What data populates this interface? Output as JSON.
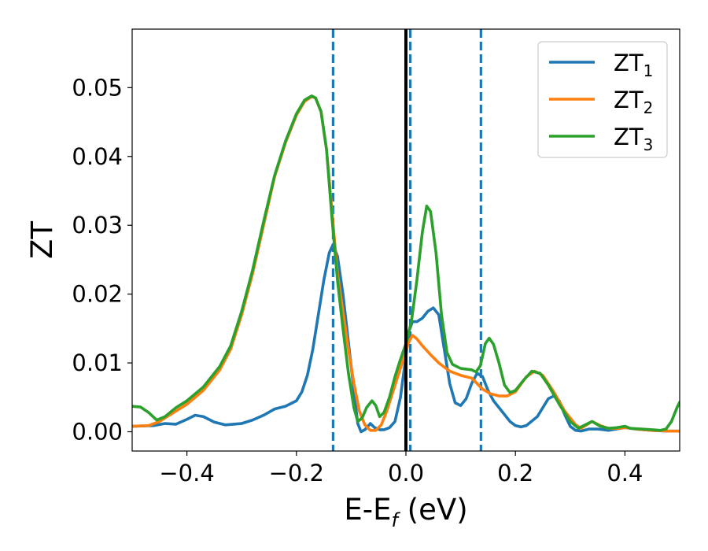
{
  "chart_data": {
    "type": "line",
    "xlabel_main": "E-E",
    "xlabel_sub": "f",
    "xlabel_unit": " (eV)",
    "ylabel": "ZT",
    "xlim": [
      -0.5,
      0.5
    ],
    "ylim": [
      -0.0028,
      0.0585
    ],
    "x_ticks": [
      -0.4,
      -0.2,
      0.0,
      0.2,
      0.4
    ],
    "x_tick_labels": [
      "−0.4",
      "−0.2",
      "0.0",
      "0.2",
      "0.4"
    ],
    "y_ticks": [
      0.0,
      0.01,
      0.02,
      0.03,
      0.04,
      0.05
    ],
    "y_tick_labels": [
      "0.00",
      "0.01",
      "0.02",
      "0.03",
      "0.04",
      "0.05"
    ],
    "grid": false,
    "legend_position": "top-right",
    "vlines": [
      {
        "x": -0.133,
        "style": "dashed",
        "color": "#1f77b4"
      },
      {
        "x": 0.0,
        "style": "solid",
        "color": "#000000"
      },
      {
        "x": 0.008,
        "style": "dashed",
        "color": "#1f77b4"
      },
      {
        "x": 0.137,
        "style": "dashed",
        "color": "#1f77b4"
      }
    ],
    "series": [
      {
        "label_base": "ZT",
        "label_sub": "1",
        "color": "#1f77b4",
        "points": [
          [
            -0.5,
            0.0008
          ],
          [
            -0.46,
            0.0009
          ],
          [
            -0.44,
            0.0012
          ],
          [
            -0.42,
            0.0011
          ],
          [
            -0.4,
            0.0018
          ],
          [
            -0.385,
            0.0024
          ],
          [
            -0.37,
            0.0022
          ],
          [
            -0.35,
            0.0014
          ],
          [
            -0.33,
            0.001
          ],
          [
            -0.3,
            0.0012
          ],
          [
            -0.28,
            0.0017
          ],
          [
            -0.26,
            0.0024
          ],
          [
            -0.24,
            0.0033
          ],
          [
            -0.22,
            0.0037
          ],
          [
            -0.2,
            0.0045
          ],
          [
            -0.19,
            0.0058
          ],
          [
            -0.18,
            0.0082
          ],
          [
            -0.17,
            0.012
          ],
          [
            -0.16,
            0.017
          ],
          [
            -0.15,
            0.022
          ],
          [
            -0.14,
            0.026
          ],
          [
            -0.133,
            0.0272
          ],
          [
            -0.125,
            0.0255
          ],
          [
            -0.115,
            0.02
          ],
          [
            -0.105,
            0.013
          ],
          [
            -0.095,
            0.006
          ],
          [
            -0.088,
            0.0012
          ],
          [
            -0.082,
            0.0
          ],
          [
            -0.075,
            0.0003
          ],
          [
            -0.065,
            0.0012
          ],
          [
            -0.057,
            0.0006
          ],
          [
            -0.048,
            0.0003
          ],
          [
            -0.04,
            0.0003
          ],
          [
            -0.03,
            0.0006
          ],
          [
            -0.02,
            0.0015
          ],
          [
            -0.01,
            0.005
          ],
          [
            0.0,
            0.011
          ],
          [
            0.005,
            0.0145
          ],
          [
            0.012,
            0.016
          ],
          [
            0.02,
            0.016
          ],
          [
            0.03,
            0.0165
          ],
          [
            0.04,
            0.0175
          ],
          [
            0.05,
            0.018
          ],
          [
            0.06,
            0.017
          ],
          [
            0.07,
            0.012
          ],
          [
            0.08,
            0.007
          ],
          [
            0.09,
            0.0042
          ],
          [
            0.1,
            0.0038
          ],
          [
            0.11,
            0.0048
          ],
          [
            0.12,
            0.007
          ],
          [
            0.13,
            0.0085
          ],
          [
            0.14,
            0.008
          ],
          [
            0.15,
            0.006
          ],
          [
            0.16,
            0.0045
          ],
          [
            0.17,
            0.0035
          ],
          [
            0.18,
            0.0025
          ],
          [
            0.19,
            0.0015
          ],
          [
            0.2,
            0.0009
          ],
          [
            0.21,
            0.0007
          ],
          [
            0.22,
            0.0009
          ],
          [
            0.24,
            0.0022
          ],
          [
            0.26,
            0.0048
          ],
          [
            0.27,
            0.0052
          ],
          [
            0.28,
            0.0045
          ],
          [
            0.29,
            0.0025
          ],
          [
            0.3,
            0.0008
          ],
          [
            0.31,
            0.0002
          ],
          [
            0.32,
            0.0001
          ],
          [
            0.335,
            0.0004
          ],
          [
            0.35,
            0.0004
          ],
          [
            0.37,
            0.0002
          ],
          [
            0.4,
            0.0006
          ],
          [
            0.42,
            0.0004
          ],
          [
            0.45,
            0.0002
          ],
          [
            0.48,
            0.0001
          ],
          [
            0.5,
            0.0001
          ]
        ]
      },
      {
        "label_base": "ZT",
        "label_sub": "2",
        "color": "#ff7f0e",
        "points": [
          [
            -0.5,
            0.0008
          ],
          [
            -0.47,
            0.0009
          ],
          [
            -0.45,
            0.0015
          ],
          [
            -0.43,
            0.0025
          ],
          [
            -0.4,
            0.004
          ],
          [
            -0.37,
            0.006
          ],
          [
            -0.34,
            0.009
          ],
          [
            -0.32,
            0.012
          ],
          [
            -0.3,
            0.017
          ],
          [
            -0.28,
            0.023
          ],
          [
            -0.26,
            0.03
          ],
          [
            -0.24,
            0.037
          ],
          [
            -0.22,
            0.042
          ],
          [
            -0.2,
            0.046
          ],
          [
            -0.185,
            0.048
          ],
          [
            -0.172,
            0.0487
          ],
          [
            -0.165,
            0.0485
          ],
          [
            -0.155,
            0.0465
          ],
          [
            -0.145,
            0.041
          ],
          [
            -0.135,
            0.032
          ],
          [
            -0.125,
            0.023
          ],
          [
            -0.115,
            0.0175
          ],
          [
            -0.105,
            0.012
          ],
          [
            -0.095,
            0.007
          ],
          [
            -0.085,
            0.003
          ],
          [
            -0.075,
            0.001
          ],
          [
            -0.065,
            0.0002
          ],
          [
            -0.055,
            0.0002
          ],
          [
            -0.045,
            0.001
          ],
          [
            -0.035,
            0.003
          ],
          [
            -0.025,
            0.0055
          ],
          [
            -0.015,
            0.008
          ],
          [
            -0.005,
            0.0105
          ],
          [
            0.005,
            0.013
          ],
          [
            0.012,
            0.014
          ],
          [
            0.02,
            0.0135
          ],
          [
            0.03,
            0.0125
          ],
          [
            0.045,
            0.0112
          ],
          [
            0.06,
            0.01
          ],
          [
            0.07,
            0.0094
          ],
          [
            0.08,
            0.0088
          ],
          [
            0.1,
            0.0082
          ],
          [
            0.12,
            0.0078
          ],
          [
            0.13,
            0.007
          ],
          [
            0.14,
            0.0062
          ],
          [
            0.155,
            0.0055
          ],
          [
            0.17,
            0.0052
          ],
          [
            0.185,
            0.0052
          ],
          [
            0.2,
            0.0058
          ],
          [
            0.22,
            0.008
          ],
          [
            0.235,
            0.0088
          ],
          [
            0.25,
            0.0082
          ],
          [
            0.27,
            0.0058
          ],
          [
            0.29,
            0.003
          ],
          [
            0.31,
            0.001
          ],
          [
            0.32,
            0.0005
          ],
          [
            0.33,
            0.001
          ],
          [
            0.34,
            0.0015
          ],
          [
            0.355,
            0.0009
          ],
          [
            0.37,
            0.0005
          ],
          [
            0.39,
            0.0005
          ],
          [
            0.4,
            0.0006
          ],
          [
            0.42,
            0.0004
          ],
          [
            0.45,
            0.0002
          ],
          [
            0.48,
            0.0001
          ],
          [
            0.5,
            0.0001
          ]
        ]
      },
      {
        "label_base": "ZT",
        "label_sub": "3",
        "color": "#2ca02c",
        "points": [
          [
            -0.5,
            0.0037
          ],
          [
            -0.485,
            0.0036
          ],
          [
            -0.47,
            0.0028
          ],
          [
            -0.455,
            0.0017
          ],
          [
            -0.44,
            0.0022
          ],
          [
            -0.42,
            0.0035
          ],
          [
            -0.4,
            0.0045
          ],
          [
            -0.37,
            0.0065
          ],
          [
            -0.34,
            0.0095
          ],
          [
            -0.32,
            0.0125
          ],
          [
            -0.3,
            0.0175
          ],
          [
            -0.28,
            0.0235
          ],
          [
            -0.26,
            0.0305
          ],
          [
            -0.24,
            0.0372
          ],
          [
            -0.22,
            0.0422
          ],
          [
            -0.2,
            0.0462
          ],
          [
            -0.185,
            0.0482
          ],
          [
            -0.172,
            0.0488
          ],
          [
            -0.165,
            0.0485
          ],
          [
            -0.155,
            0.0465
          ],
          [
            -0.145,
            0.041
          ],
          [
            -0.135,
            0.031
          ],
          [
            -0.125,
            0.022
          ],
          [
            -0.115,
            0.015
          ],
          [
            -0.105,
            0.0085
          ],
          [
            -0.095,
            0.0035
          ],
          [
            -0.088,
            0.0015
          ],
          [
            -0.08,
            0.002
          ],
          [
            -0.072,
            0.0035
          ],
          [
            -0.062,
            0.0045
          ],
          [
            -0.055,
            0.0038
          ],
          [
            -0.048,
            0.0022
          ],
          [
            -0.04,
            0.0028
          ],
          [
            -0.03,
            0.005
          ],
          [
            -0.02,
            0.008
          ],
          [
            -0.01,
            0.0105
          ],
          [
            0.0,
            0.0128
          ],
          [
            0.01,
            0.016
          ],
          [
            0.02,
            0.022
          ],
          [
            0.03,
            0.029
          ],
          [
            0.038,
            0.0328
          ],
          [
            0.045,
            0.032
          ],
          [
            0.055,
            0.026
          ],
          [
            0.065,
            0.017
          ],
          [
            0.075,
            0.0115
          ],
          [
            0.085,
            0.0098
          ],
          [
            0.1,
            0.0092
          ],
          [
            0.12,
            0.009
          ],
          [
            0.128,
            0.0087
          ],
          [
            0.136,
            0.0096
          ],
          [
            0.145,
            0.0128
          ],
          [
            0.152,
            0.0136
          ],
          [
            0.16,
            0.0127
          ],
          [
            0.17,
            0.01
          ],
          [
            0.18,
            0.0068
          ],
          [
            0.19,
            0.0057
          ],
          [
            0.2,
            0.006
          ],
          [
            0.215,
            0.0075
          ],
          [
            0.23,
            0.0088
          ],
          [
            0.245,
            0.0085
          ],
          [
            0.26,
            0.0068
          ],
          [
            0.28,
            0.004
          ],
          [
            0.3,
            0.0015
          ],
          [
            0.315,
            0.0005
          ],
          [
            0.325,
            0.0009
          ],
          [
            0.34,
            0.0015
          ],
          [
            0.355,
            0.0008
          ],
          [
            0.37,
            0.0005
          ],
          [
            0.385,
            0.0006
          ],
          [
            0.4,
            0.0008
          ],
          [
            0.41,
            0.0005
          ],
          [
            0.43,
            0.0004
          ],
          [
            0.45,
            0.0003
          ],
          [
            0.465,
            0.0002
          ],
          [
            0.475,
            0.0004
          ],
          [
            0.485,
            0.0015
          ],
          [
            0.495,
            0.0035
          ],
          [
            0.5,
            0.0043
          ]
        ]
      }
    ]
  }
}
